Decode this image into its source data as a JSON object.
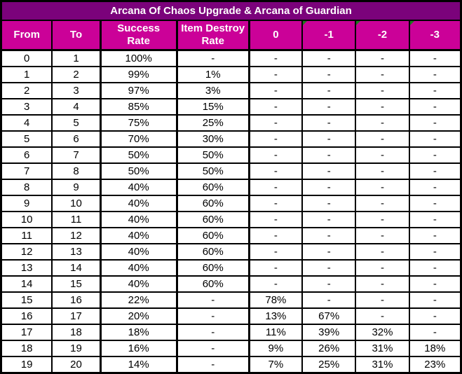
{
  "colors": {
    "title_bg": "#7B027B",
    "header_bg": "#CB0198",
    "grid_border": "#000000",
    "header_text": "#FFFFFF",
    "cell_text": "#000000",
    "cell_bg": "#FFFFFF",
    "marker_green": "#1C7C1C"
  },
  "chart_data": {
    "type": "table",
    "title": "Arcana Of Chaos Upgrade & Arcana of Guardian",
    "columns": [
      "From",
      "To",
      "Success Rate",
      "Item Destroy Rate",
      "0",
      "-1",
      "-2",
      "-3"
    ],
    "header_lines": [
      "From",
      "To",
      "Success\nRate",
      "Item Destroy\nRate",
      "0",
      "-1",
      "-2",
      "-3"
    ],
    "marker_columns": [
      5,
      6,
      7
    ],
    "rows": [
      [
        "0",
        "1",
        "100%",
        "-",
        "-",
        "-",
        "-",
        "-"
      ],
      [
        "1",
        "2",
        "99%",
        "1%",
        "-",
        "-",
        "-",
        "-"
      ],
      [
        "2",
        "3",
        "97%",
        "3%",
        "-",
        "-",
        "-",
        "-"
      ],
      [
        "3",
        "4",
        "85%",
        "15%",
        "-",
        "-",
        "-",
        "-"
      ],
      [
        "4",
        "5",
        "75%",
        "25%",
        "-",
        "-",
        "-",
        "-"
      ],
      [
        "5",
        "6",
        "70%",
        "30%",
        "-",
        "-",
        "-",
        "-"
      ],
      [
        "6",
        "7",
        "50%",
        "50%",
        "-",
        "-",
        "-",
        "-"
      ],
      [
        "7",
        "8",
        "50%",
        "50%",
        "-",
        "-",
        "-",
        "-"
      ],
      [
        "8",
        "9",
        "40%",
        "60%",
        "-",
        "-",
        "-",
        "-"
      ],
      [
        "9",
        "10",
        "40%",
        "60%",
        "-",
        "-",
        "-",
        "-"
      ],
      [
        "10",
        "11",
        "40%",
        "60%",
        "-",
        "-",
        "-",
        "-"
      ],
      [
        "11",
        "12",
        "40%",
        "60%",
        "-",
        "-",
        "-",
        "-"
      ],
      [
        "12",
        "13",
        "40%",
        "60%",
        "-",
        "-",
        "-",
        "-"
      ],
      [
        "13",
        "14",
        "40%",
        "60%",
        "-",
        "-",
        "-",
        "-"
      ],
      [
        "14",
        "15",
        "40%",
        "60%",
        "-",
        "-",
        "-",
        "-"
      ],
      [
        "15",
        "16",
        "22%",
        "-",
        "78%",
        "-",
        "-",
        "-"
      ],
      [
        "16",
        "17",
        "20%",
        "-",
        "13%",
        "67%",
        "-",
        "-"
      ],
      [
        "17",
        "18",
        "18%",
        "-",
        "11%",
        "39%",
        "32%",
        "-"
      ],
      [
        "18",
        "19",
        "16%",
        "-",
        "9%",
        "26%",
        "31%",
        "18%"
      ],
      [
        "19",
        "20",
        "14%",
        "-",
        "7%",
        "25%",
        "31%",
        "23%"
      ]
    ]
  }
}
